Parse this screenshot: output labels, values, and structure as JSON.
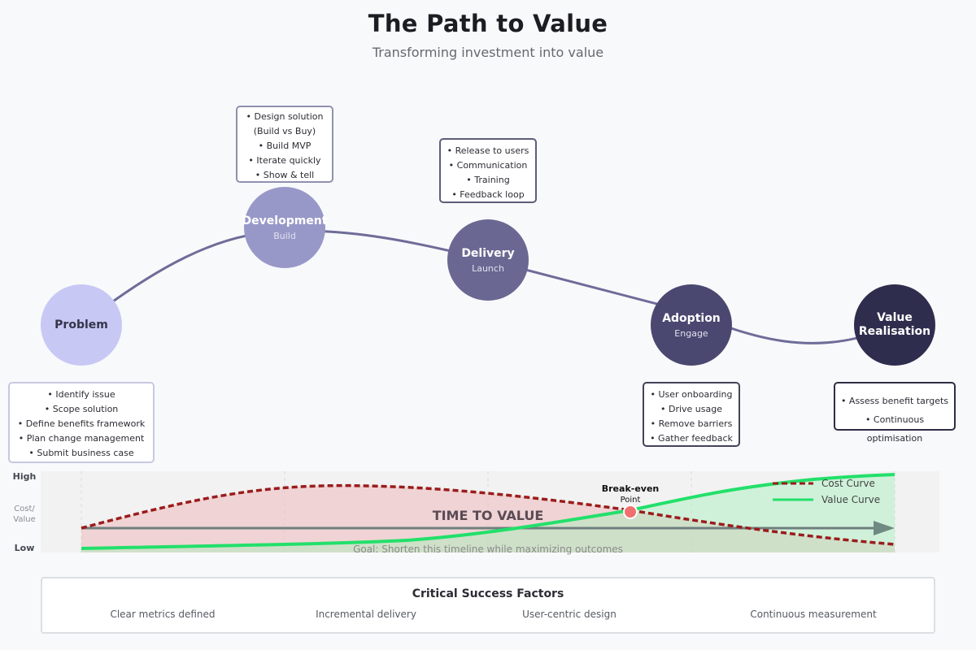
{
  "title": "The Path to Value",
  "subtitle": "Transforming investment into value",
  "stages": [
    {
      "name": "Problem",
      "sub": "",
      "color": "#c8c8f5",
      "tasks": [
        "• Identify issue",
        "• Scope solution",
        "• Define benefits framework",
        "• Plan change management",
        "• Submit business case"
      ]
    },
    {
      "name": "Development",
      "sub": "Build",
      "color": "#9898c8",
      "tasks": [
        "• Design solution",
        "(Build vs Buy)",
        "• Build MVP",
        "• Iterate quickly",
        "• Show & tell"
      ]
    },
    {
      "name": "Delivery",
      "sub": "Launch",
      "color": "#6a6892",
      "tasks": [
        "• Release to users",
        "• Communication",
        "• Training",
        "• Feedback loop"
      ]
    },
    {
      "name": "Adoption",
      "sub": "Engage",
      "color": "#4a4870",
      "tasks": [
        "• User onboarding",
        "• Drive usage",
        "• Remove barriers",
        "• Gather feedback"
      ]
    },
    {
      "name": "Value\nRealisation",
      "sub": "",
      "color": "#2f2d4e",
      "tasks": [
        "• Assess benefit targets",
        "• Continuous optimisation"
      ]
    }
  ],
  "timeline": {
    "title": "TIME TO VALUE",
    "goal": "Goal: Shorten this timeline while maximizing outcomes",
    "y_high": "High",
    "y_low": "Low",
    "y_label_1": "Cost/",
    "y_label_2": "Value",
    "breakeven_label": "Break-even",
    "breakeven_sub": "Point",
    "legend_cost": "Cost Curve",
    "legend_value": "Value Curve",
    "cost_color": "#9b1c1c",
    "value_color": "#22e06a",
    "path_color": "#6e6c98"
  },
  "success": {
    "title": "Critical Success Factors",
    "factors": [
      "Clear metrics defined",
      "Incremental delivery",
      "User-centric design",
      "Continuous measurement"
    ]
  }
}
